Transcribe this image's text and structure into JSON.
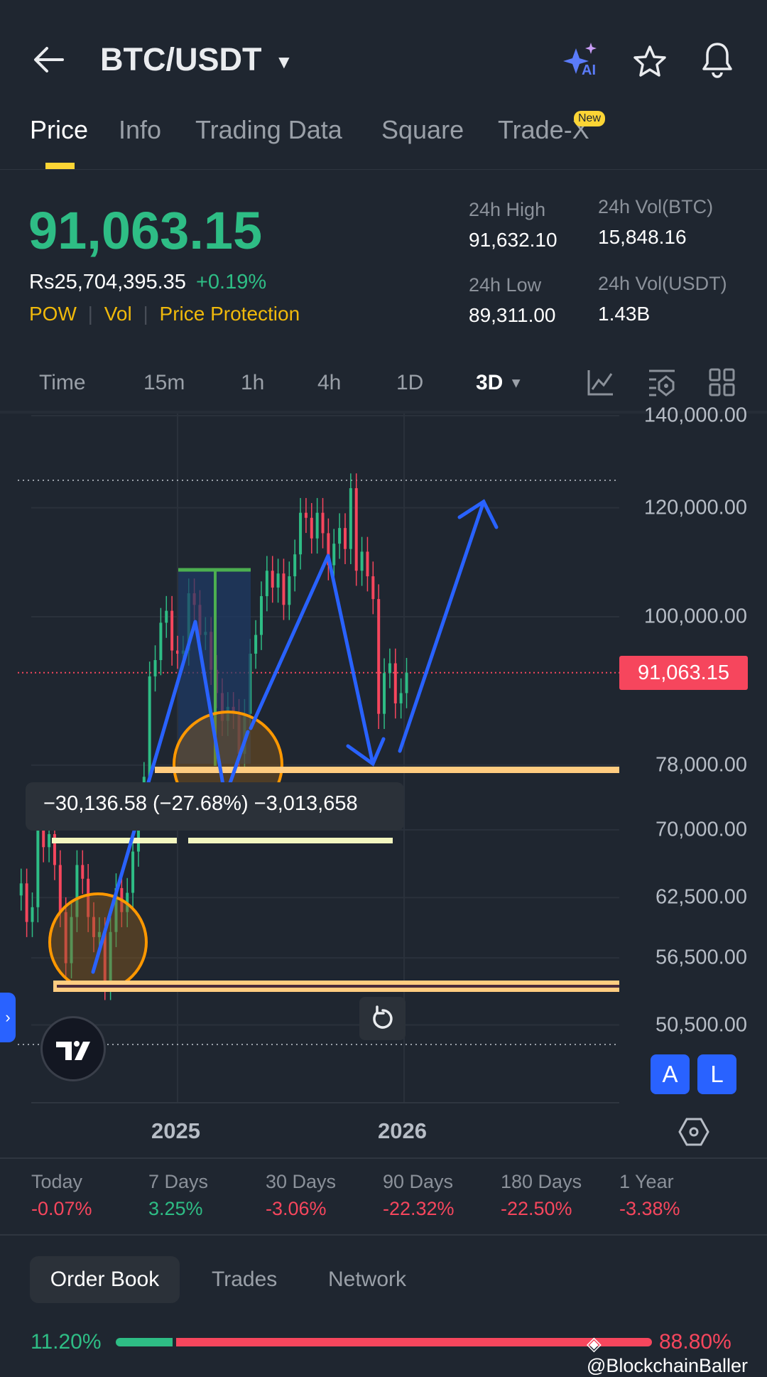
{
  "header": {
    "title": "BTC/USDT",
    "icons": [
      "back-arrow-icon",
      "caret-down-icon",
      "ai-sparkle-icon",
      "star-icon",
      "bell-icon"
    ],
    "ai_label": "AI"
  },
  "tabs": [
    {
      "label": "Price",
      "active": true
    },
    {
      "label": "Info"
    },
    {
      "label": "Trading Data"
    },
    {
      "label": "Square"
    },
    {
      "label": "Trade-X",
      "badge": "New"
    }
  ],
  "ticker": {
    "last_price": "91,063.15",
    "fiat_price": "Rs25,704,395.35",
    "change": "+0.19%",
    "tags": [
      "POW",
      "Vol",
      "Price Protection"
    ],
    "high_label": "24h High",
    "high": "91,632.10",
    "low_label": "24h Low",
    "low": "89,311.00",
    "vol_btc_label": "24h Vol(BTC)",
    "vol_btc": "15,848.16",
    "vol_usdt_label": "24h Vol(USDT)",
    "vol_usdt": "1.43B"
  },
  "intervals": {
    "items": [
      "Time",
      "15m",
      "1h",
      "4h",
      "1D",
      "3D"
    ],
    "selected": "3D"
  },
  "chart_data": {
    "type": "candlestick",
    "scale": "log",
    "interval": "3D",
    "ylim": [
      48000,
      140000
    ],
    "y_ticks": [
      "140,000.00",
      "120,000.00",
      "100,000.00",
      "78,000.00",
      "70,000.00",
      "62,500.00",
      "56,500.00",
      "50,500.00"
    ],
    "y_tick_values": [
      140000,
      120000,
      100000,
      78000,
      70000,
      62500,
      56500,
      50500
    ],
    "x_ticks": [
      "2025",
      "2026"
    ],
    "current_price": 91063.15,
    "current_price_label": "91,063.15",
    "measure_label": "−30,136.58 (−27.68%) −3,013,658",
    "series": {
      "start": "2024-04-24",
      "step_days": 9,
      "close": [
        64000,
        60000,
        61500,
        70000,
        68000,
        69500,
        66000,
        61000,
        56000,
        60500,
        66000,
        64500,
        60500,
        58500,
        59000,
        54000,
        59000,
        63500,
        61000,
        63000,
        67500,
        72000,
        76500,
        90500,
        93000,
        99000,
        101000,
        94500,
        94000,
        94500,
        104000,
        102000,
        97000,
        97500,
        91500,
        88000,
        84000,
        86000,
        85000,
        79500,
        85000,
        94000,
        97000,
        103500,
        108000,
        105000,
        107500,
        102000,
        107000,
        111000,
        119000,
        118000,
        114000,
        119000,
        115000,
        109000,
        113000,
        116000,
        112000,
        124000,
        108000,
        111500,
        107000,
        103000,
        85000,
        91000,
        92500,
        86500,
        88000,
        91063
      ]
    },
    "colors": {
      "up": "#2ebd85",
      "down": "#f6465d",
      "annotation": "#2962ff",
      "zone": "#ffcc80",
      "circle": "#ff9800"
    }
  },
  "chart_controls": {
    "reset": "reset-icon",
    "a_label": "A",
    "l_label": "L"
  },
  "performance": [
    {
      "label": "Today",
      "value": "-0.07%",
      "dir": "down"
    },
    {
      "label": "7 Days",
      "value": "3.25%",
      "dir": "up"
    },
    {
      "label": "30 Days",
      "value": "-3.06%",
      "dir": "down"
    },
    {
      "label": "90 Days",
      "value": "-22.32%",
      "dir": "down"
    },
    {
      "label": "180 Days",
      "value": "-22.50%",
      "dir": "down"
    },
    {
      "label": "1 Year",
      "value": "-3.38%",
      "dir": "down"
    }
  ],
  "bottom_tabs": [
    {
      "label": "Order Book",
      "active": true
    },
    {
      "label": "Trades"
    },
    {
      "label": "Network"
    }
  ],
  "order_book": {
    "bid_pct": "11.20%",
    "ask_pct": "88.80%",
    "bid_fraction": 0.112
  },
  "watermark": "@BlockchainBaller"
}
